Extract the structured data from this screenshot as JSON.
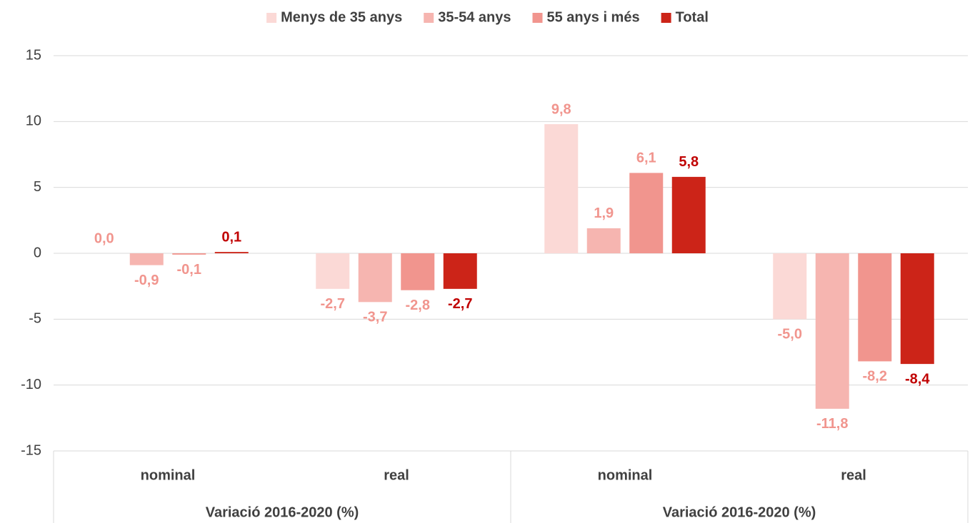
{
  "chart_data": {
    "type": "bar",
    "categories": [
      "nominal",
      "real",
      "nominal",
      "real"
    ],
    "groups": [
      "Variació 2016-2020 (%)",
      "Variació 2016-2020 (%)"
    ],
    "series": [
      {
        "name": "Menys de 35 anys",
        "color": "#fbd9d6",
        "values": [
          0.0,
          -2.7,
          9.8,
          -5.0
        ],
        "value_labels": [
          "0,0",
          "-2,7",
          "9,8",
          "-5,0"
        ]
      },
      {
        "name": "35-54 anys",
        "color": "#f6b5b0",
        "values": [
          -0.9,
          -3.7,
          1.9,
          -11.8
        ],
        "value_labels": [
          "-0,9",
          "-3,7",
          "1,9",
          "-11,8"
        ]
      },
      {
        "name": "55 anys i més",
        "color": "#f1958e",
        "values": [
          -0.1,
          -2.8,
          6.1,
          -8.2
        ],
        "value_labels": [
          "-0,1",
          "-2,8",
          "6,1",
          "-8,2"
        ]
      },
      {
        "name": "Total",
        "color": "#cc2418",
        "values": [
          0.1,
          -2.7,
          5.8,
          -8.4
        ],
        "value_labels": [
          "0,1",
          "-2,7",
          "5,8",
          "-8,4"
        ]
      }
    ],
    "ylim": [
      -15,
      15
    ],
    "yticks": [
      -15,
      -10,
      -5,
      0,
      5,
      10,
      15
    ],
    "grid": true,
    "legend": "top"
  }
}
